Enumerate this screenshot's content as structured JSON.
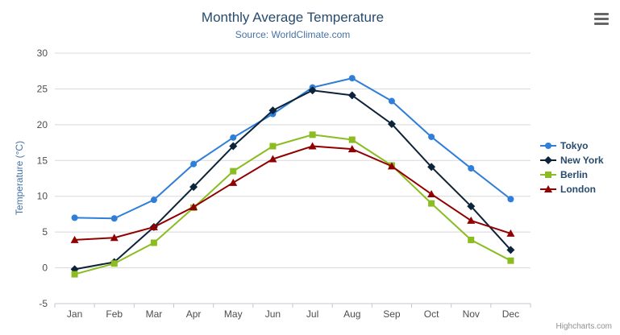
{
  "header": {
    "export_icon": "hamburger-icon"
  },
  "credits": {
    "label": "Highcharts.com"
  },
  "colors": {
    "title_text": "#274b6d",
    "subtitle_text": "#4572a7",
    "axis_label_text": "#4d4d4d",
    "grid_line": "#d8d8d8",
    "axis_line": "#c0c8d0",
    "legend_text": "#274b6d",
    "credits_text": "#909090"
  },
  "chart_data": {
    "type": "line",
    "title": "Monthly Average Temperature",
    "subtitle": "Source: WorldClimate.com",
    "categories": [
      "Jan",
      "Feb",
      "Mar",
      "Apr",
      "May",
      "Jun",
      "Jul",
      "Aug",
      "Sep",
      "Oct",
      "Nov",
      "Dec"
    ],
    "series": [
      {
        "name": "Tokyo",
        "color": "#2f7ed8",
        "marker": "circle",
        "values": [
          7.0,
          6.9,
          9.5,
          14.5,
          18.2,
          21.5,
          25.2,
          26.5,
          23.3,
          18.3,
          13.9,
          9.6
        ]
      },
      {
        "name": "New York",
        "color": "#0d233a",
        "marker": "diamond",
        "values": [
          -0.2,
          0.8,
          5.7,
          11.3,
          17.0,
          22.0,
          24.8,
          24.1,
          20.1,
          14.1,
          8.6,
          2.5
        ]
      },
      {
        "name": "Berlin",
        "color": "#8bbc21",
        "marker": "square",
        "values": [
          -0.9,
          0.6,
          3.5,
          8.4,
          13.5,
          17.0,
          18.6,
          17.9,
          14.3,
          9.0,
          3.9,
          1.0
        ]
      },
      {
        "name": "London",
        "color": "#910000",
        "marker": "triangle",
        "values": [
          3.9,
          4.2,
          5.7,
          8.5,
          11.9,
          15.2,
          17.0,
          16.6,
          14.2,
          10.3,
          6.6,
          4.8
        ]
      }
    ],
    "xlabel": "",
    "ylabel": "Temperature (°C)",
    "ylim": [
      -5,
      30
    ],
    "ytick_interval": 5,
    "grid": true,
    "legend_position": "right"
  }
}
